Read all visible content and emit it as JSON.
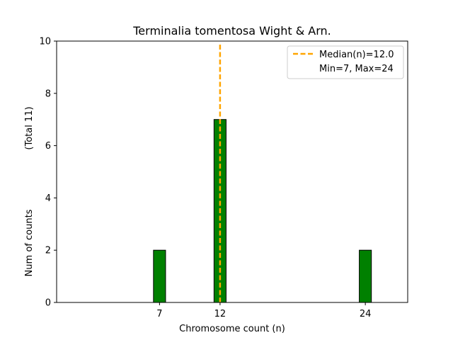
{
  "chart_data": {
    "type": "bar",
    "title": "Terminalia tomentosa Wight & Arn.",
    "xlabel": "Chromosome count (n)",
    "ylabel": "Num of counts",
    "ylabel_total": "(Total 11)",
    "xlim": [
      -1.5,
      27.5
    ],
    "ylim": [
      0,
      10
    ],
    "yticks": [
      0,
      2,
      4,
      6,
      8,
      10
    ],
    "xticks": [
      7,
      12,
      24
    ],
    "bar_width": 1,
    "bars": [
      {
        "x": 7,
        "value": 2
      },
      {
        "x": 12,
        "value": 7
      },
      {
        "x": 24,
        "value": 2
      }
    ],
    "baseline": [
      0,
      27
    ],
    "median": 12.0,
    "legend": {
      "position": "top-right",
      "median_label": "Median(n)=12.0",
      "minmax_label": "Min=7, Max=24"
    },
    "colors": {
      "bar_fill": "#008000",
      "bar_edge": "#000000",
      "median_line": "#FFA500"
    }
  }
}
